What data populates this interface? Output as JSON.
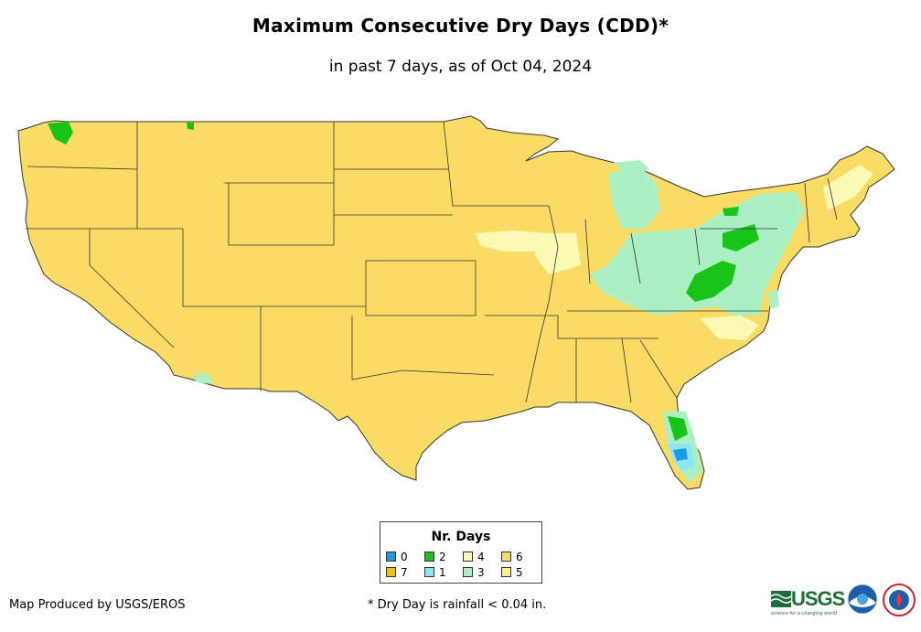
{
  "title": "Maximum Consecutive Dry Days (CDD)*",
  "subtitle": "in past 7 days, as of Oct 04, 2024",
  "legend": {
    "title": "Nr. Days",
    "items": [
      {
        "label": "0",
        "color": "#1e9be6"
      },
      {
        "label": "2",
        "color": "#18c418"
      },
      {
        "label": "4",
        "color": "#fafab4"
      },
      {
        "label": "6",
        "color": "#fadc64"
      },
      {
        "label": "7",
        "color": "#f5be00"
      },
      {
        "label": "1",
        "color": "#8ce6f5"
      },
      {
        "label": "3",
        "color": "#aaf0c3"
      },
      {
        "label": "5",
        "color": "#fff08c"
      }
    ]
  },
  "credit": "Map Produced by USGS/EROS",
  "footnote": "* Dry Day is rainfall < 0.04 in.",
  "logos": {
    "usgs": "USGS",
    "usgs_tagline": "science for a changing world"
  },
  "map": {
    "base_color": "#fadc64",
    "border_color": "#333333"
  }
}
